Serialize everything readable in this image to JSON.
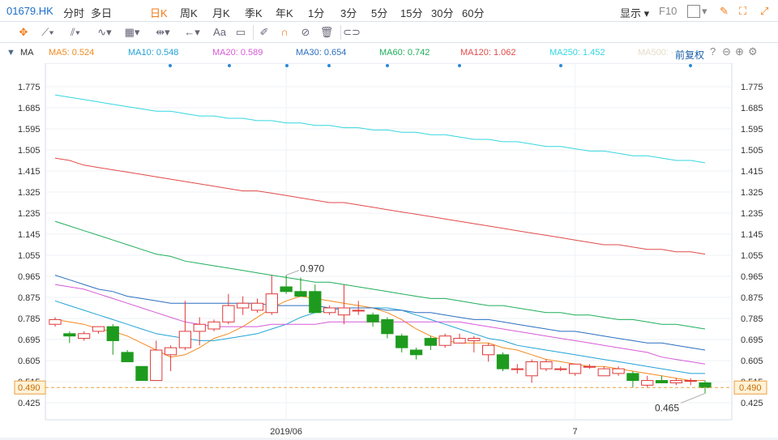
{
  "toolbar": {
    "symbol": "01679.HK",
    "periods": [
      "分时",
      "多日",
      "日K",
      "周K",
      "月K",
      "季K",
      "年K",
      "1分",
      "3分",
      "5分",
      "15分",
      "30分",
      "60分"
    ],
    "active_period": "日K",
    "display_label": "显示",
    "f10_label": "F10"
  },
  "draw_tools": {
    "text_label": "Aa"
  },
  "indicator": {
    "name": "MA",
    "ma_labels": [
      {
        "text": "MA5: 0.524",
        "color": "#f08a1c"
      },
      {
        "text": "MA10: 0.548",
        "color": "#22a3d6"
      },
      {
        "text": "MA20: 0.589",
        "color": "#d65ad6"
      },
      {
        "text": "MA30: 0.654",
        "color": "#2a6fc0"
      },
      {
        "text": "MA60: 0.742",
        "color": "#1fae5a"
      },
      {
        "text": "MA120: 1.062",
        "color": "#e24a4a"
      },
      {
        "text": "MA250: 1.452",
        "color": "#35d6e0"
      },
      {
        "text": "MA500: -",
        "color": "#e6dcc8"
      }
    ],
    "adjust_label": "前复权"
  },
  "chart_data": {
    "type": "candlestick",
    "y_ticks": [
      "1.775",
      "1.685",
      "1.595",
      "1.505",
      "1.415",
      "1.325",
      "1.235",
      "1.145",
      "1.055",
      "0.965",
      "0.875",
      "0.785",
      "0.695",
      "0.605",
      "0.515",
      "0.425"
    ],
    "ylim": [
      0.4,
      1.8
    ],
    "x_labels": [
      {
        "text": "2019/06",
        "index": 16
      },
      {
        "text": "7",
        "index": 36
      }
    ],
    "current_price": "0.490",
    "high_annotation": {
      "text": "0.970",
      "index": 16
    },
    "low_annotation": {
      "text": "0.465",
      "index": 45
    },
    "candles": [
      {
        "o": 0.76,
        "h": 0.79,
        "l": 0.75,
        "c": 0.78
      },
      {
        "o": 0.72,
        "h": 0.73,
        "l": 0.68,
        "c": 0.71
      },
      {
        "o": 0.7,
        "h": 0.73,
        "l": 0.69,
        "c": 0.72
      },
      {
        "o": 0.73,
        "h": 0.75,
        "l": 0.72,
        "c": 0.75
      },
      {
        "o": 0.75,
        "h": 0.76,
        "l": 0.63,
        "c": 0.69
      },
      {
        "o": 0.64,
        "h": 0.65,
        "l": 0.6,
        "c": 0.6
      },
      {
        "o": 0.58,
        "h": 0.58,
        "l": 0.52,
        "c": 0.52
      },
      {
        "o": 0.52,
        "h": 0.69,
        "l": 0.52,
        "c": 0.65
      },
      {
        "o": 0.63,
        "h": 0.67,
        "l": 0.56,
        "c": 0.66
      },
      {
        "o": 0.66,
        "h": 0.86,
        "l": 0.65,
        "c": 0.73
      },
      {
        "o": 0.73,
        "h": 0.79,
        "l": 0.67,
        "c": 0.76
      },
      {
        "o": 0.74,
        "h": 0.78,
        "l": 0.73,
        "c": 0.77
      },
      {
        "o": 0.77,
        "h": 0.89,
        "l": 0.76,
        "c": 0.84
      },
      {
        "o": 0.83,
        "h": 0.88,
        "l": 0.8,
        "c": 0.85
      },
      {
        "o": 0.82,
        "h": 0.87,
        "l": 0.81,
        "c": 0.85
      },
      {
        "o": 0.81,
        "h": 0.97,
        "l": 0.8,
        "c": 0.89
      },
      {
        "o": 0.92,
        "h": 0.97,
        "l": 0.89,
        "c": 0.9
      },
      {
        "o": 0.9,
        "h": 0.96,
        "l": 0.88,
        "c": 0.88
      },
      {
        "o": 0.9,
        "h": 0.93,
        "l": 0.81,
        "c": 0.81
      },
      {
        "o": 0.81,
        "h": 0.84,
        "l": 0.8,
        "c": 0.83
      },
      {
        "o": 0.8,
        "h": 0.93,
        "l": 0.76,
        "c": 0.83
      },
      {
        "o": 0.82,
        "h": 0.86,
        "l": 0.8,
        "c": 0.82
      },
      {
        "o": 0.8,
        "h": 0.81,
        "l": 0.75,
        "c": 0.77
      },
      {
        "o": 0.78,
        "h": 0.79,
        "l": 0.7,
        "c": 0.72
      },
      {
        "o": 0.71,
        "h": 0.72,
        "l": 0.64,
        "c": 0.66
      },
      {
        "o": 0.65,
        "h": 0.66,
        "l": 0.61,
        "c": 0.63
      },
      {
        "o": 0.7,
        "h": 0.71,
        "l": 0.65,
        "c": 0.67
      },
      {
        "o": 0.67,
        "h": 0.72,
        "l": 0.66,
        "c": 0.71
      },
      {
        "o": 0.68,
        "h": 0.72,
        "l": 0.68,
        "c": 0.7
      },
      {
        "o": 0.69,
        "h": 0.71,
        "l": 0.64,
        "c": 0.7
      },
      {
        "o": 0.63,
        "h": 0.68,
        "l": 0.6,
        "c": 0.67
      },
      {
        "o": 0.63,
        "h": 0.64,
        "l": 0.56,
        "c": 0.57
      },
      {
        "o": 0.57,
        "h": 0.59,
        "l": 0.55,
        "c": 0.57
      },
      {
        "o": 0.54,
        "h": 0.61,
        "l": 0.51,
        "c": 0.6
      },
      {
        "o": 0.57,
        "h": 0.61,
        "l": 0.56,
        "c": 0.6
      },
      {
        "o": 0.57,
        "h": 0.58,
        "l": 0.56,
        "c": 0.57
      },
      {
        "o": 0.55,
        "h": 0.59,
        "l": 0.54,
        "c": 0.59
      },
      {
        "o": 0.58,
        "h": 0.59,
        "l": 0.57,
        "c": 0.58
      },
      {
        "o": 0.54,
        "h": 0.58,
        "l": 0.54,
        "c": 0.57
      },
      {
        "o": 0.55,
        "h": 0.58,
        "l": 0.54,
        "c": 0.57
      },
      {
        "o": 0.55,
        "h": 0.56,
        "l": 0.49,
        "c": 0.52
      },
      {
        "o": 0.5,
        "h": 0.54,
        "l": 0.49,
        "c": 0.52
      },
      {
        "o": 0.52,
        "h": 0.54,
        "l": 0.51,
        "c": 0.51
      },
      {
        "o": 0.51,
        "h": 0.53,
        "l": 0.5,
        "c": 0.52
      },
      {
        "o": 0.52,
        "h": 0.53,
        "l": 0.5,
        "c": 0.52
      },
      {
        "o": 0.51,
        "h": 0.52,
        "l": 0.465,
        "c": 0.49
      }
    ],
    "ma_series": [
      {
        "name": "MA5",
        "color": "#f08a1c",
        "values": [
          0.78,
          0.77,
          0.76,
          0.74,
          0.73,
          0.71,
          0.68,
          0.65,
          0.62,
          0.63,
          0.66,
          0.7,
          0.72,
          0.75,
          0.79,
          0.83,
          0.86,
          0.88,
          0.87,
          0.86,
          0.85,
          0.84,
          0.83,
          0.81,
          0.78,
          0.74,
          0.71,
          0.69,
          0.68,
          0.68,
          0.68,
          0.66,
          0.65,
          0.63,
          0.61,
          0.6,
          0.59,
          0.58,
          0.58,
          0.57,
          0.56,
          0.55,
          0.54,
          0.53,
          0.52,
          0.52
        ]
      },
      {
        "name": "MA10",
        "color": "#22a3d6",
        "values": [
          0.86,
          0.84,
          0.82,
          0.8,
          0.78,
          0.76,
          0.74,
          0.72,
          0.71,
          0.7,
          0.69,
          0.69,
          0.7,
          0.71,
          0.72,
          0.74,
          0.76,
          0.79,
          0.81,
          0.82,
          0.83,
          0.83,
          0.83,
          0.83,
          0.82,
          0.8,
          0.78,
          0.76,
          0.74,
          0.72,
          0.7,
          0.69,
          0.67,
          0.66,
          0.65,
          0.64,
          0.63,
          0.62,
          0.61,
          0.6,
          0.59,
          0.58,
          0.57,
          0.56,
          0.55,
          0.55
        ]
      },
      {
        "name": "MA20",
        "color": "#d65ad6",
        "values": [
          0.93,
          0.92,
          0.91,
          0.89,
          0.87,
          0.85,
          0.83,
          0.81,
          0.79,
          0.77,
          0.76,
          0.75,
          0.75,
          0.75,
          0.75,
          0.76,
          0.76,
          0.76,
          0.76,
          0.77,
          0.77,
          0.77,
          0.77,
          0.77,
          0.77,
          0.77,
          0.77,
          0.77,
          0.77,
          0.76,
          0.75,
          0.74,
          0.73,
          0.72,
          0.71,
          0.7,
          0.69,
          0.68,
          0.67,
          0.66,
          0.65,
          0.64,
          0.62,
          0.61,
          0.6,
          0.59
        ]
      },
      {
        "name": "MA30",
        "color": "#2a6fc0",
        "values": [
          0.97,
          0.95,
          0.93,
          0.91,
          0.9,
          0.88,
          0.87,
          0.86,
          0.85,
          0.85,
          0.85,
          0.85,
          0.85,
          0.85,
          0.85,
          0.84,
          0.84,
          0.84,
          0.84,
          0.83,
          0.83,
          0.83,
          0.83,
          0.82,
          0.82,
          0.81,
          0.81,
          0.8,
          0.79,
          0.78,
          0.78,
          0.77,
          0.76,
          0.75,
          0.74,
          0.73,
          0.73,
          0.72,
          0.71,
          0.7,
          0.69,
          0.68,
          0.68,
          0.67,
          0.66,
          0.65
        ]
      },
      {
        "name": "MA60",
        "color": "#1fae5a",
        "values": [
          1.2,
          1.18,
          1.16,
          1.14,
          1.12,
          1.1,
          1.08,
          1.06,
          1.05,
          1.03,
          1.02,
          1.01,
          1.0,
          0.99,
          0.98,
          0.97,
          0.96,
          0.95,
          0.94,
          0.94,
          0.93,
          0.92,
          0.91,
          0.9,
          0.89,
          0.88,
          0.87,
          0.87,
          0.86,
          0.85,
          0.84,
          0.84,
          0.83,
          0.82,
          0.81,
          0.81,
          0.8,
          0.8,
          0.79,
          0.78,
          0.78,
          0.77,
          0.76,
          0.76,
          0.75,
          0.74
        ]
      },
      {
        "name": "MA120",
        "color": "#e24a4a",
        "values": [
          1.47,
          1.46,
          1.44,
          1.43,
          1.42,
          1.41,
          1.4,
          1.39,
          1.38,
          1.37,
          1.36,
          1.35,
          1.34,
          1.33,
          1.33,
          1.32,
          1.31,
          1.3,
          1.29,
          1.28,
          1.28,
          1.27,
          1.26,
          1.25,
          1.24,
          1.23,
          1.22,
          1.21,
          1.2,
          1.19,
          1.18,
          1.17,
          1.16,
          1.15,
          1.14,
          1.13,
          1.12,
          1.11,
          1.1,
          1.1,
          1.09,
          1.08,
          1.08,
          1.07,
          1.07,
          1.06
        ]
      },
      {
        "name": "MA250",
        "color": "#35d6e0",
        "values": [
          1.74,
          1.73,
          1.72,
          1.71,
          1.7,
          1.69,
          1.68,
          1.67,
          1.67,
          1.66,
          1.65,
          1.65,
          1.64,
          1.64,
          1.63,
          1.63,
          1.62,
          1.62,
          1.61,
          1.61,
          1.6,
          1.6,
          1.59,
          1.59,
          1.58,
          1.58,
          1.57,
          1.57,
          1.56,
          1.55,
          1.55,
          1.54,
          1.54,
          1.53,
          1.52,
          1.52,
          1.51,
          1.5,
          1.5,
          1.49,
          1.48,
          1.48,
          1.47,
          1.46,
          1.46,
          1.45
        ]
      }
    ]
  }
}
